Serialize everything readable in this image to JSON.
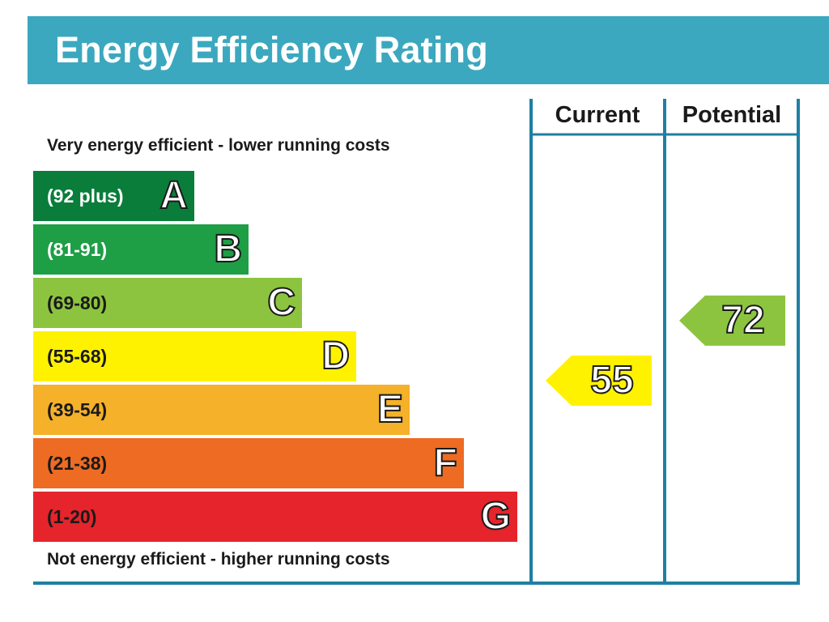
{
  "title": "Energy Efficiency Rating",
  "captions": {
    "top": "Very energy efficient - lower running costs",
    "bottom": "Not energy efficient - higher running costs"
  },
  "columns": {
    "current": "Current",
    "potential": "Potential"
  },
  "colors": {
    "title_bar": "#3ba8bf",
    "frame": "#1f7fa3",
    "band_A": "#0a7d3b",
    "band_B": "#1e9e45",
    "band_C": "#8cc43f",
    "band_D": "#fff200",
    "band_E": "#f5b12a",
    "band_F": "#ee6b23",
    "band_G": "#e5242b"
  },
  "chart_data": {
    "type": "bar",
    "categories": [
      "A",
      "B",
      "C",
      "D",
      "E",
      "F",
      "G"
    ],
    "ranges": [
      "(92 plus)",
      "(81-91)",
      "(69-80)",
      "(55-68)",
      "(39-54)",
      "(21-38)",
      "(1-20)"
    ],
    "bands": [
      {
        "letter": "A",
        "range": "(92 plus)",
        "min": 92,
        "max": 100,
        "color": "#0a7d3b",
        "text_dark": false
      },
      {
        "letter": "B",
        "range": "(81-91)",
        "min": 81,
        "max": 91,
        "color": "#1e9e45",
        "text_dark": false
      },
      {
        "letter": "C",
        "range": "(69-80)",
        "min": 69,
        "max": 80,
        "color": "#8cc43f",
        "text_dark": true
      },
      {
        "letter": "D",
        "range": "(55-68)",
        "min": 55,
        "max": 68,
        "color": "#fff200",
        "text_dark": true
      },
      {
        "letter": "E",
        "range": "(39-54)",
        "min": 39,
        "max": 54,
        "color": "#f5b12a",
        "text_dark": true
      },
      {
        "letter": "F",
        "range": "(21-38)",
        "min": 21,
        "max": 38,
        "color": "#ee6b23",
        "text_dark": true
      },
      {
        "letter": "G",
        "range": "(1-20)",
        "min": 1,
        "max": 20,
        "color": "#e5242b",
        "text_dark": true
      }
    ],
    "current": {
      "value": 55,
      "band": "D",
      "color": "#fff200"
    },
    "potential": {
      "value": 72,
      "band": "C",
      "color": "#8cc43f"
    }
  }
}
